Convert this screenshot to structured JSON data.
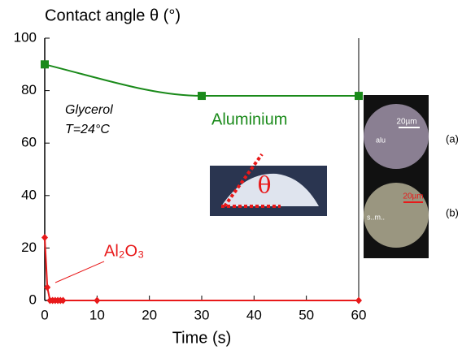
{
  "chart_data": {
    "type": "line",
    "title": "Contact angle θ (°)",
    "x_label": "Time (s)",
    "xlim": [
      0,
      60
    ],
    "xticks": [
      0,
      10,
      20,
      30,
      40,
      50,
      60
    ],
    "ylim": [
      0,
      100
    ],
    "yticks": [
      0,
      20,
      40,
      60,
      80,
      100
    ],
    "series": [
      {
        "name": "Aluminium",
        "color": "#1a8a1a",
        "marker": "square",
        "x": [
          0,
          30,
          60
        ],
        "values": [
          90,
          78,
          78
        ]
      },
      {
        "name": "Al₂O₃",
        "color": "#e8191a",
        "marker": "diamond",
        "x": [
          0,
          0.5,
          1,
          1.5,
          2,
          2.5,
          3,
          3.5,
          10,
          60
        ],
        "values": [
          24,
          5,
          0,
          0,
          0,
          0,
          0,
          0,
          0,
          0
        ]
      }
    ],
    "annotations": [
      "Glycerol",
      "T=24°C"
    ],
    "insets": {
      "drop_symbol": "θ",
      "scale_a": "20µm",
      "scale_b": "20µm",
      "label_a_inner": "alu",
      "label_b_inner": "s..m..",
      "panel_a": "(a)",
      "panel_b": "(b)"
    }
  }
}
